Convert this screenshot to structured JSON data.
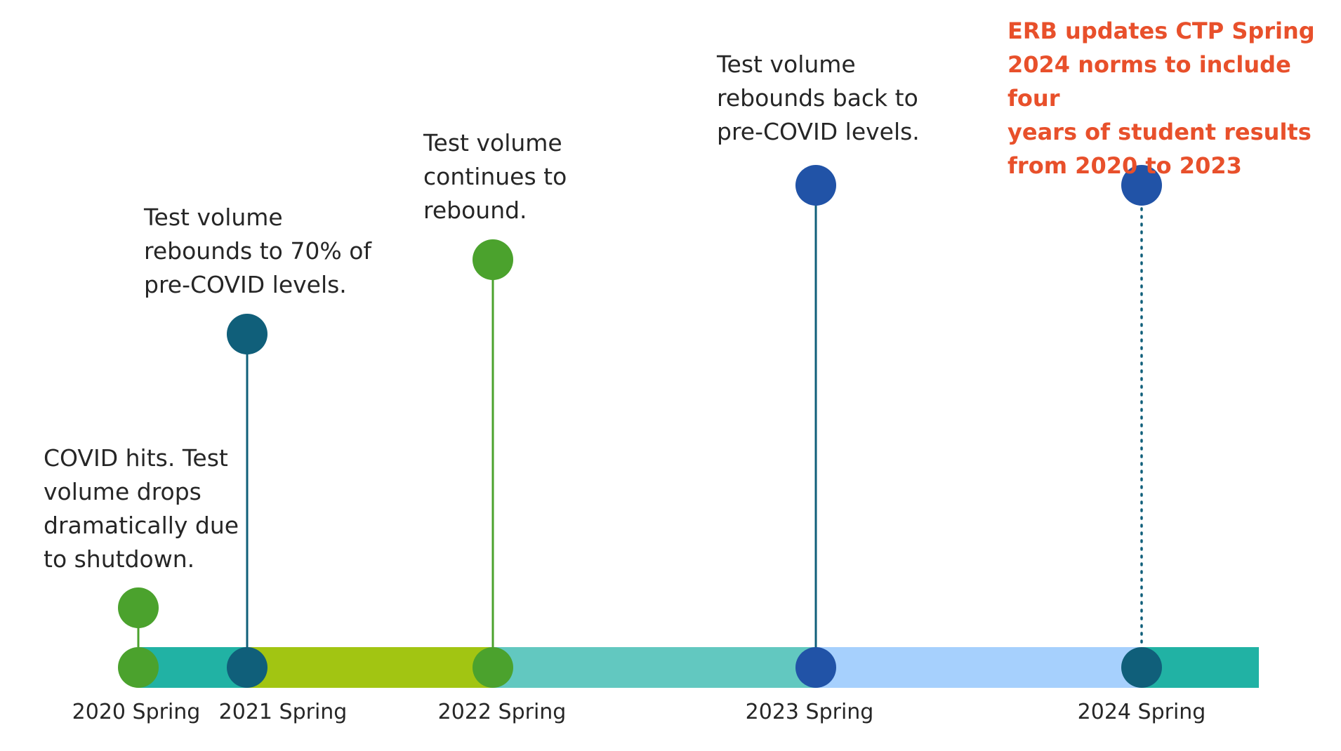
{
  "colors": {
    "green": "#4ba22d",
    "dark_teal": "#105f7a",
    "blue": "#2153a7",
    "teal": "#21b2a4",
    "lime": "#a2c512",
    "light_teal": "#62c8c0",
    "light_blue": "#a6d0fd",
    "highlight": "#e8502b",
    "text": "#262626"
  },
  "events": [
    {
      "year_label": "2020 Spring",
      "note_lines": [
        "COVID hits. Test",
        "volume drops",
        "dramatically due",
        "to shutdown."
      ],
      "color": "#4ba22d",
      "line_style": "solid",
      "highlight": false
    },
    {
      "year_label": "2021 Spring",
      "note_lines": [
        "Test volume",
        "rebounds to 70% of",
        "pre-COVID levels."
      ],
      "color": "#105f7a",
      "line_style": "solid",
      "highlight": false
    },
    {
      "year_label": "2022 Spring",
      "note_lines": [
        "Test volume",
        "continues to",
        "rebound."
      ],
      "color": "#4ba22d",
      "line_style": "solid",
      "highlight": false
    },
    {
      "year_label": "2023 Spring",
      "note_lines": [
        "Test volume",
        "rebounds back to",
        "pre-COVID levels."
      ],
      "color": "#2153a7",
      "line_style": "solid",
      "highlight": false
    },
    {
      "year_label": "2024 Spring",
      "note_lines": [
        "ERB updates CTP Spring",
        "2024 norms to include four",
        "years of student results",
        "from 2020 to 2023"
      ],
      "color": "#2153a7",
      "line_style": "dotted",
      "highlight": true
    }
  ]
}
